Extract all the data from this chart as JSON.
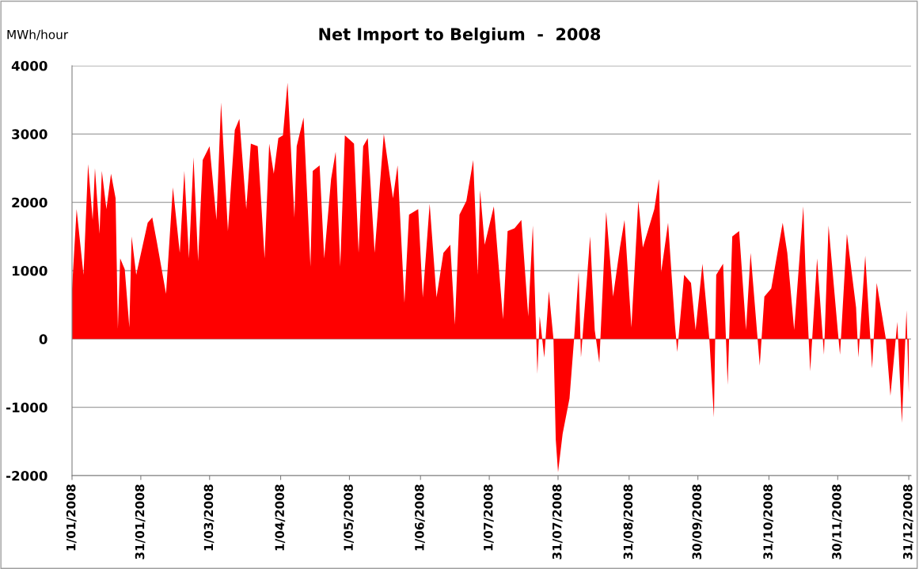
{
  "chart_data": {
    "type": "area",
    "title": "Net Import to Belgium  -  2008",
    "ylabel": "MWh/hour",
    "x": [
      "2008-01-01",
      "2008-01-03",
      "2008-01-06",
      "2008-01-08",
      "2008-01-10",
      "2008-01-11",
      "2008-01-13",
      "2008-01-14",
      "2008-01-16",
      "2008-01-18",
      "2008-01-20",
      "2008-01-21",
      "2008-01-22",
      "2008-01-24",
      "2008-01-26",
      "2008-01-27",
      "2008-01-29",
      "2008-02-03",
      "2008-02-05",
      "2008-02-07",
      "2008-02-11",
      "2008-02-14",
      "2008-02-17",
      "2008-02-19",
      "2008-02-21",
      "2008-02-23",
      "2008-02-25",
      "2008-02-27",
      "2008-03-01",
      "2008-03-04",
      "2008-03-06",
      "2008-03-09",
      "2008-03-12",
      "2008-03-14",
      "2008-03-17",
      "2008-03-19",
      "2008-03-22",
      "2008-03-25",
      "2008-03-27",
      "2008-03-29",
      "2008-03-31",
      "2008-04-02",
      "2008-04-04",
      "2008-04-07",
      "2008-04-08",
      "2008-04-11",
      "2008-04-14",
      "2008-04-15",
      "2008-04-18",
      "2008-04-20",
      "2008-04-23",
      "2008-04-25",
      "2008-04-27",
      "2008-04-29",
      "2008-05-03",
      "2008-05-05",
      "2008-05-07",
      "2008-05-09",
      "2008-05-12",
      "2008-05-16",
      "2008-05-20",
      "2008-05-22",
      "2008-05-25",
      "2008-05-27",
      "2008-05-31",
      "2008-06-02",
      "2008-06-05",
      "2008-06-08",
      "2008-06-11",
      "2008-06-14",
      "2008-06-16",
      "2008-06-18",
      "2008-06-21",
      "2008-06-24",
      "2008-06-26",
      "2008-06-27",
      "2008-06-29",
      "2008-07-03",
      "2008-07-07",
      "2008-07-09",
      "2008-07-12",
      "2008-07-15",
      "2008-07-18",
      "2008-07-20",
      "2008-07-22",
      "2008-07-23",
      "2008-07-25",
      "2008-07-27",
      "2008-07-29",
      "2008-07-30",
      "2008-07-31",
      "2008-08-02",
      "2008-08-05",
      "2008-08-07",
      "2008-08-09",
      "2008-08-10",
      "2008-08-14",
      "2008-08-16",
      "2008-08-18",
      "2008-08-21",
      "2008-08-24",
      "2008-08-27",
      "2008-08-29",
      "2008-09-01",
      "2008-09-04",
      "2008-09-06",
      "2008-09-11",
      "2008-09-13",
      "2008-09-14",
      "2008-09-17",
      "2008-09-20",
      "2008-09-21",
      "2008-09-24",
      "2008-09-27",
      "2008-09-29",
      "2008-10-02",
      "2008-10-05",
      "2008-10-07",
      "2008-10-08",
      "2008-10-11",
      "2008-10-13",
      "2008-10-15",
      "2008-10-18",
      "2008-10-21",
      "2008-10-23",
      "2008-10-27",
      "2008-10-29",
      "2008-11-01",
      "2008-11-06",
      "2008-11-08",
      "2008-11-11",
      "2008-11-15",
      "2008-11-16",
      "2008-11-18",
      "2008-11-21",
      "2008-11-24",
      "2008-11-26",
      "2008-11-30",
      "2008-12-01",
      "2008-12-04",
      "2008-12-08",
      "2008-12-09",
      "2008-12-12",
      "2008-12-15",
      "2008-12-17",
      "2008-12-21",
      "2008-12-23",
      "2008-12-26",
      "2008-12-28",
      "2008-12-30",
      "2008-12-31"
    ],
    "series": [
      {
        "color": "#ff0000",
        "values": [
          730,
          1900,
          940,
          2560,
          1740,
          2500,
          1540,
          2460,
          1900,
          2420,
          2060,
          150,
          1180,
          1020,
          170,
          1500,
          940,
          1700,
          1780,
          1420,
          660,
          2220,
          1260,
          2460,
          1180,
          2660,
          1140,
          2620,
          2820,
          1740,
          3460,
          1580,
          3060,
          3220,
          1900,
          2860,
          2820,
          1180,
          2860,
          2420,
          2940,
          2980,
          3750,
          1780,
          2820,
          3240,
          1060,
          2460,
          2540,
          1180,
          2340,
          2740,
          1060,
          2980,
          2860,
          1260,
          2820,
          2940,
          1260,
          3000,
          2060,
          2540,
          530,
          1820,
          1900,
          610,
          1980,
          610,
          1260,
          1380,
          210,
          1820,
          2020,
          2620,
          940,
          2180,
          1380,
          1940,
          290,
          1580,
          1620,
          1740,
          330,
          1660,
          -510,
          330,
          -270,
          700,
          0,
          -1470,
          -1950,
          -1390,
          -870,
          0,
          980,
          -270,
          1500,
          130,
          -350,
          1860,
          620,
          1340,
          1740,
          170,
          2020,
          1340,
          1900,
          2340,
          980,
          1700,
          210,
          -190,
          940,
          820,
          130,
          1100,
          0,
          -1150,
          940,
          1100,
          -670,
          1500,
          1580,
          130,
          1260,
          -390,
          620,
          740,
          1700,
          1260,
          130,
          1940,
          940,
          -470,
          1180,
          -230,
          1660,
          130,
          -230,
          1540,
          460,
          -270,
          1220,
          -430,
          820,
          0,
          -830,
          250,
          -1230,
          420,
          -790
        ]
      }
    ],
    "xlim": [
      "2008-01-01",
      "2009-01-01"
    ],
    "xticks": [
      {
        "value": "2008-01-01",
        "label": "1/01/2008"
      },
      {
        "value": "2008-01-31",
        "label": "31/01/2008"
      },
      {
        "value": "2008-03-01",
        "label": "1/03/2008"
      },
      {
        "value": "2008-04-01",
        "label": "1/04/2008"
      },
      {
        "value": "2008-05-01",
        "label": "1/05/2008"
      },
      {
        "value": "2008-06-01",
        "label": "1/06/2008"
      },
      {
        "value": "2008-07-01",
        "label": "1/07/2008"
      },
      {
        "value": "2008-07-31",
        "label": "31/07/2008"
      },
      {
        "value": "2008-08-31",
        "label": "31/08/2008"
      },
      {
        "value": "2008-09-30",
        "label": "30/09/2008"
      },
      {
        "value": "2008-10-31",
        "label": "31/10/2008"
      },
      {
        "value": "2008-11-30",
        "label": "30/11/2008"
      },
      {
        "value": "2008-12-31",
        "label": "31/12/2008"
      }
    ],
    "ylim": [
      -2000,
      4000
    ],
    "yticks": [
      -2000,
      -1000,
      0,
      1000,
      2000,
      3000,
      4000
    ],
    "grid": "y"
  }
}
